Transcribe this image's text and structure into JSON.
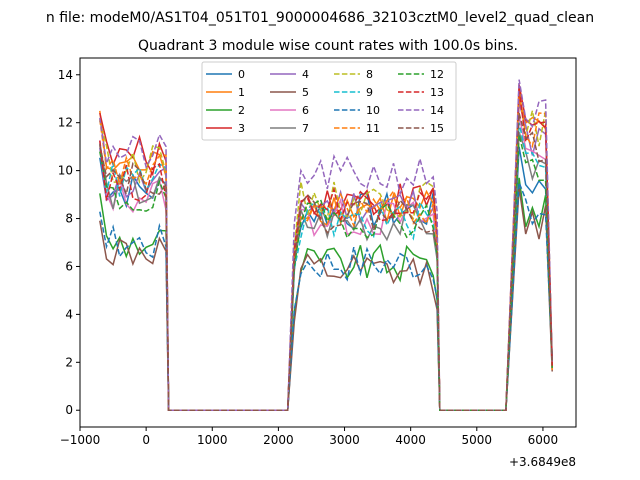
{
  "chart_data": {
    "type": "line",
    "suptitle": "n file: modeM0/AS1T04_051T01_9000004686_32103cztM0_level2_quad_clean",
    "title": "Quadrant 3 module wise count rates with 100.0s bins.",
    "xlabel": "",
    "ylabel": "",
    "x_offset_label": "+3.6849e8",
    "xlim": [
      -1000,
      6500
    ],
    "ylim": [
      -0.7,
      14.7
    ],
    "xticks": [
      -1000,
      0,
      1000,
      2000,
      3000,
      4000,
      5000,
      6000
    ],
    "yticks": [
      0,
      2,
      4,
      6,
      8,
      10,
      12,
      14
    ],
    "xtick_labels": [
      "−1000",
      "0",
      "1000",
      "2000",
      "3000",
      "4000",
      "5000",
      "6000"
    ],
    "ytick_labels": [
      "0",
      "2",
      "4",
      "6",
      "8",
      "10",
      "12",
      "14"
    ],
    "grid": false,
    "legend_position": "top-center",
    "legend_columns": 4,
    "segment_note": "Counts are zero from about 340 to 2140 and 4440 to 5440; three active segments.",
    "series": [
      {
        "name": "0",
        "color": "#1f77b4",
        "dash": "solid",
        "base": [
          9.2,
          8.3,
          10.0
        ]
      },
      {
        "name": "1",
        "color": "#ff7f0e",
        "dash": "solid",
        "base": [
          10.2,
          8.5,
          12.0
        ]
      },
      {
        "name": "2",
        "color": "#2ca02c",
        "dash": "solid",
        "base": [
          7.0,
          6.1,
          8.7
        ]
      },
      {
        "name": "3",
        "color": "#d62728",
        "dash": "solid",
        "base": [
          10.6,
          8.8,
          12.6
        ]
      },
      {
        "name": "4",
        "color": "#9467bd",
        "dash": "solid",
        "base": [
          9.4,
          8.6,
          11.8
        ]
      },
      {
        "name": "5",
        "color": "#8c564b",
        "dash": "solid",
        "base": [
          6.6,
          5.7,
          8.3
        ]
      },
      {
        "name": "6",
        "color": "#e377c2",
        "dash": "solid",
        "base": [
          9.0,
          8.0,
          11.3
        ]
      },
      {
        "name": "7",
        "color": "#7f7f7f",
        "dash": "solid",
        "base": [
          9.1,
          7.8,
          10.6
        ]
      },
      {
        "name": "8",
        "color": "#bcbd22",
        "dash": "dashed",
        "base": [
          10.3,
          8.8,
          12.3
        ]
      },
      {
        "name": "9",
        "color": "#17becf",
        "dash": "dashed",
        "base": [
          9.6,
          7.9,
          11.0
        ]
      },
      {
        "name": "10",
        "color": "#1f77b4",
        "dash": "dashed",
        "base": [
          7.0,
          6.2,
          8.5
        ]
      },
      {
        "name": "11",
        "color": "#ff7f0e",
        "dash": "dashed",
        "base": [
          9.9,
          8.4,
          12.2
        ]
      },
      {
        "name": "12",
        "color": "#2ca02c",
        "dash": "dashed",
        "base": [
          8.8,
          8.0,
          10.5
        ]
      },
      {
        "name": "13",
        "color": "#d62728",
        "dash": "dashed",
        "base": [
          9.5,
          8.7,
          12.4
        ]
      },
      {
        "name": "14",
        "color": "#9467bd",
        "dash": "dashed",
        "base": [
          10.7,
          9.8,
          12.8
        ]
      },
      {
        "name": "15",
        "color": "#8c564b",
        "dash": "dashed",
        "base": [
          9.8,
          8.2,
          11.4
        ]
      }
    ],
    "segments": [
      [
        -700,
        300
      ],
      [
        2140,
        4440
      ],
      [
        5440,
        6140
      ]
    ],
    "zero_value": 0
  }
}
